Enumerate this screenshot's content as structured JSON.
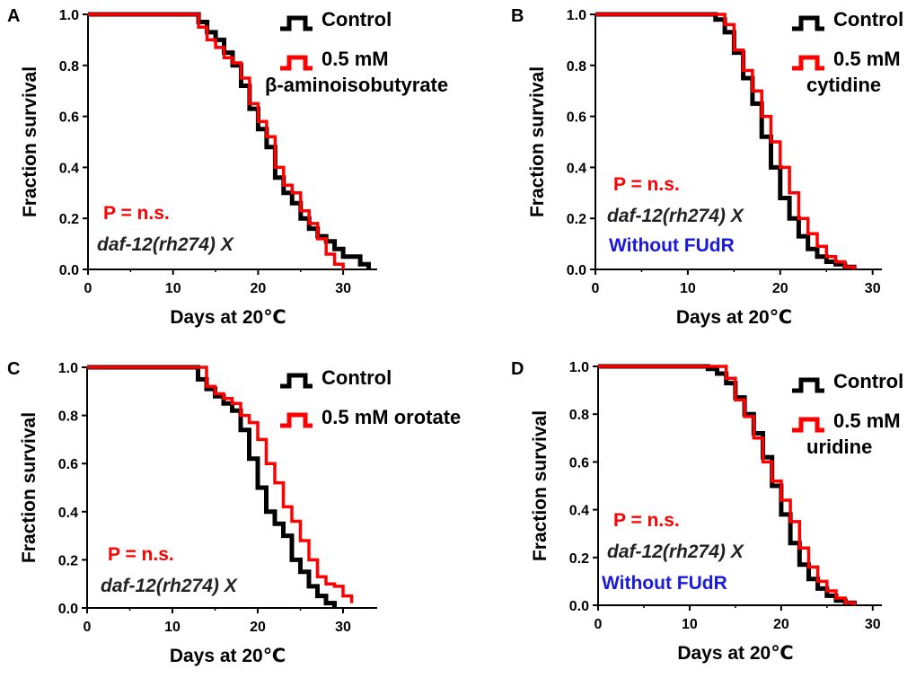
{
  "chart_data": [
    {
      "type": "line",
      "panel": "A",
      "xlabel": "Days at 20℃",
      "ylabel": "Fraction survival",
      "xlim": [
        0,
        34
      ],
      "ylim": [
        0,
        1
      ],
      "xticks": [
        "0",
        "10",
        "20",
        "30"
      ],
      "yticks": [
        "0.0",
        "0.2",
        "0.4",
        "0.6",
        "0.8",
        "1.0"
      ],
      "series": [
        {
          "name": "Control",
          "color": "#000000",
          "x": [
            0,
            13,
            14,
            15,
            16,
            17,
            18,
            19,
            20,
            21,
            22,
            23,
            24,
            25,
            26,
            27,
            28,
            29,
            30,
            31,
            32,
            33
          ],
          "y": [
            1.0,
            0.97,
            0.93,
            0.9,
            0.85,
            0.8,
            0.72,
            0.63,
            0.55,
            0.48,
            0.36,
            0.3,
            0.26,
            0.2,
            0.16,
            0.13,
            0.11,
            0.08,
            0.05,
            0.05,
            0.02,
            0.0
          ]
        },
        {
          "name": "0.5 mM β-aminoisobutyrate",
          "color": "#ff0000",
          "x": [
            0,
            13,
            14,
            15,
            16,
            17,
            18,
            19,
            20,
            21,
            22,
            23,
            24,
            25,
            26,
            27,
            28,
            29,
            30
          ],
          "y": [
            1.0,
            0.95,
            0.9,
            0.87,
            0.83,
            0.81,
            0.75,
            0.65,
            0.58,
            0.52,
            0.4,
            0.33,
            0.3,
            0.23,
            0.18,
            0.12,
            0.06,
            0.02,
            0.0
          ]
        }
      ],
      "annotations": [
        {
          "text": "P = n.s.",
          "color": "#ff0000",
          "italic": false
        },
        {
          "text": "daf-12(rh274) X",
          "color": "#222222",
          "italic": true
        }
      ]
    },
    {
      "type": "line",
      "panel": "B",
      "xlabel": "Days at 20℃",
      "ylabel": "Fraction survival",
      "xlim": [
        0,
        31
      ],
      "ylim": [
        0,
        1
      ],
      "xticks": [
        "0",
        "10",
        "20",
        "30"
      ],
      "yticks": [
        "0.0",
        "0.2",
        "0.4",
        "0.6",
        "0.8",
        "1.0"
      ],
      "series": [
        {
          "name": "Control",
          "color": "#000000",
          "x": [
            0,
            13,
            14,
            15,
            16,
            17,
            18,
            19,
            20,
            21,
            22,
            23,
            24,
            25,
            26,
            27,
            28
          ],
          "y": [
            1.0,
            0.98,
            0.93,
            0.85,
            0.75,
            0.65,
            0.52,
            0.4,
            0.28,
            0.2,
            0.13,
            0.08,
            0.05,
            0.03,
            0.02,
            0.01,
            0.0
          ]
        },
        {
          "name": "0.5 mM cytidine",
          "color": "#ff0000",
          "x": [
            0,
            14,
            15,
            16,
            17,
            18,
            19,
            20,
            21,
            22,
            23,
            24,
            25,
            26,
            27,
            28
          ],
          "y": [
            1.0,
            0.96,
            0.86,
            0.78,
            0.7,
            0.6,
            0.5,
            0.4,
            0.3,
            0.2,
            0.14,
            0.09,
            0.05,
            0.03,
            0.01,
            0.0
          ]
        }
      ],
      "annotations": [
        {
          "text": "P = n.s.",
          "color": "#ff0000",
          "italic": false
        },
        {
          "text": "daf-12(rh274) X",
          "color": "#222222",
          "italic": true
        },
        {
          "text": "Without FUdR",
          "color": "#1a1adc",
          "italic": false
        }
      ]
    },
    {
      "type": "line",
      "panel": "C",
      "xlabel": "Days at 20℃",
      "ylabel": "Fraction survival",
      "xlim": [
        0,
        34
      ],
      "ylim": [
        0,
        1
      ],
      "xticks": [
        "0",
        "10",
        "20",
        "30"
      ],
      "yticks": [
        "0.0",
        "0.2",
        "0.4",
        "0.6",
        "0.8",
        "1.0"
      ],
      "series": [
        {
          "name": "Control",
          "color": "#000000",
          "x": [
            0,
            13,
            14,
            15,
            16,
            17,
            18,
            19,
            20,
            21,
            22,
            23,
            24,
            25,
            26,
            27,
            28,
            29
          ],
          "y": [
            1.0,
            0.95,
            0.91,
            0.88,
            0.85,
            0.82,
            0.74,
            0.62,
            0.5,
            0.4,
            0.35,
            0.3,
            0.2,
            0.15,
            0.09,
            0.05,
            0.02,
            0.0
          ]
        },
        {
          "name": "0.5 mM orotate",
          "color": "#ff0000",
          "x": [
            0,
            14,
            15,
            16,
            17,
            18,
            19,
            20,
            21,
            22,
            23,
            24,
            25,
            26,
            27,
            28,
            29,
            30,
            31
          ],
          "y": [
            1.0,
            0.92,
            0.89,
            0.87,
            0.85,
            0.8,
            0.77,
            0.7,
            0.6,
            0.52,
            0.42,
            0.36,
            0.28,
            0.2,
            0.13,
            0.1,
            0.09,
            0.05,
            0.02
          ]
        }
      ],
      "annotations": [
        {
          "text": "P = n.s.",
          "color": "#ff0000",
          "italic": false
        },
        {
          "text": "daf-12(rh274) X",
          "color": "#222222",
          "italic": true
        }
      ]
    },
    {
      "type": "line",
      "panel": "D",
      "xlabel": "Days at 20℃",
      "ylabel": "Fraction survival",
      "xlim": [
        0,
        31
      ],
      "ylim": [
        0,
        1
      ],
      "xticks": [
        "0",
        "10",
        "20",
        "30"
      ],
      "yticks": [
        "0.0",
        "0.2",
        "0.4",
        "0.6",
        "0.8",
        "1.0"
      ],
      "series": [
        {
          "name": "Control",
          "color": "#000000",
          "x": [
            0,
            12,
            13,
            14,
            15,
            16,
            17,
            18,
            19,
            20,
            21,
            22,
            23,
            24,
            25,
            26,
            27,
            28
          ],
          "y": [
            1.0,
            0.99,
            0.97,
            0.93,
            0.87,
            0.8,
            0.72,
            0.62,
            0.5,
            0.38,
            0.26,
            0.17,
            0.11,
            0.07,
            0.04,
            0.02,
            0.01,
            0.0
          ]
        },
        {
          "name": "0.5 mM uridine",
          "color": "#ff0000",
          "x": [
            0,
            14,
            15,
            16,
            17,
            18,
            19,
            20,
            21,
            22,
            23,
            24,
            25,
            26,
            27,
            28
          ],
          "y": [
            1.0,
            0.95,
            0.86,
            0.79,
            0.7,
            0.6,
            0.52,
            0.44,
            0.35,
            0.24,
            0.16,
            0.1,
            0.06,
            0.03,
            0.01,
            0.0
          ]
        }
      ],
      "annotations": [
        {
          "text": "P = n.s.",
          "color": "#ff0000",
          "italic": false
        },
        {
          "text": "daf-12(rh274) X",
          "color": "#222222",
          "italic": true
        },
        {
          "text": "Without FUdR",
          "color": "#1a1adc",
          "italic": false
        }
      ]
    }
  ],
  "panels": [
    {
      "letter": "A",
      "xlabel": "Days at 20℃",
      "ylabel": "Fraction survival",
      "legend": [
        {
          "lines": [
            "Control"
          ]
        },
        {
          "lines": [
            "0.5 mM",
            "β-aminoisobutyrate"
          ]
        }
      ],
      "annotations": [
        "P = n.s.",
        "daf-12(rh274) X"
      ]
    },
    {
      "letter": "B",
      "xlabel": "Days at 20℃",
      "ylabel": "Fraction survival",
      "legend": [
        {
          "lines": [
            "Control"
          ]
        },
        {
          "lines": [
            "0.5 mM",
            "cytidine"
          ]
        }
      ],
      "annotations": [
        "P = n.s.",
        "daf-12(rh274) X",
        "Without FUdR"
      ]
    },
    {
      "letter": "C",
      "xlabel": "Days at 20℃",
      "ylabel": "Fraction survival",
      "legend": [
        {
          "lines": [
            "Control"
          ]
        },
        {
          "lines": [
            "0.5 mM orotate"
          ]
        }
      ],
      "annotations": [
        "P = n.s.",
        "daf-12(rh274) X"
      ]
    },
    {
      "letter": "D",
      "xlabel": "Days at 20℃",
      "ylabel": "Fraction survival",
      "legend": [
        {
          "lines": [
            "Control"
          ]
        },
        {
          "lines": [
            "0.5 mM",
            "uridine"
          ]
        }
      ],
      "annotations": [
        "P = n.s.",
        "daf-12(rh274) X",
        "Without FUdR"
      ]
    }
  ]
}
